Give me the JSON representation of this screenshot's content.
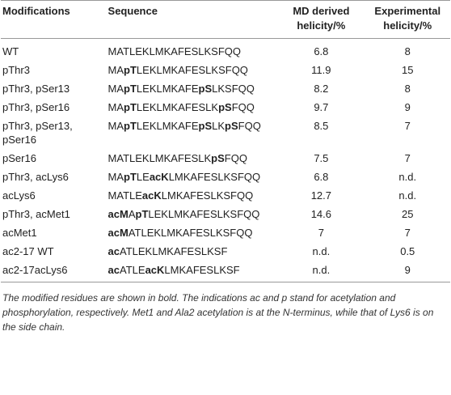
{
  "table": {
    "headers": [
      "Modifications",
      "Sequence",
      "MD derived helicity/%",
      "Experimental helicity/%"
    ],
    "rows": [
      {
        "modification": "WT",
        "sequence": [
          {
            "text": "MATLEKLMKAFESLKSFQQ"
          }
        ],
        "md": 6.8,
        "exp": 8
      },
      {
        "modification": "pThr3",
        "sequence": [
          {
            "text": "MA"
          },
          {
            "text": "pT",
            "bold": true
          },
          {
            "text": "LEKLMKAFESLKSFQQ"
          }
        ],
        "md": 11.9,
        "exp": 15
      },
      {
        "modification": "pThr3, pSer13",
        "sequence": [
          {
            "text": "MA"
          },
          {
            "text": "pT",
            "bold": true
          },
          {
            "text": "LEKLMKAFE"
          },
          {
            "text": "pS",
            "bold": true
          },
          {
            "text": "LKSFQQ"
          }
        ],
        "md": 8.2,
        "exp": 8
      },
      {
        "modification": "pThr3, pSer16",
        "sequence": [
          {
            "text": "MA"
          },
          {
            "text": "pT",
            "bold": true
          },
          {
            "text": "LEKLMKAFESLK"
          },
          {
            "text": "pS",
            "bold": true
          },
          {
            "text": "FQQ"
          }
        ],
        "md": 9.7,
        "exp": 9
      },
      {
        "modification": "pThr3, pSer13, pSer16",
        "sequence": [
          {
            "text": "MA"
          },
          {
            "text": "pT",
            "bold": true
          },
          {
            "text": "LEKLMKAFE"
          },
          {
            "text": "pS",
            "bold": true
          },
          {
            "text": "LK"
          },
          {
            "text": "pS",
            "bold": true
          },
          {
            "text": "FQQ"
          }
        ],
        "md": 8.5,
        "exp": 7
      },
      {
        "modification": "pSer16",
        "sequence": [
          {
            "text": "MATLEKLMKAFESLK"
          },
          {
            "text": "pS",
            "bold": true
          },
          {
            "text": "FQQ"
          }
        ],
        "md": 7.5,
        "exp": 7
      },
      {
        "modification": "pThr3, acLys6",
        "sequence": [
          {
            "text": "MA"
          },
          {
            "text": "pT",
            "bold": true
          },
          {
            "text": "LE"
          },
          {
            "text": "acK",
            "bold": true
          },
          {
            "text": "LMKAFESLKSFQQ"
          }
        ],
        "md": 6.8,
        "exp": "n.d."
      },
      {
        "modification": "acLys6",
        "sequence": [
          {
            "text": "MATLE"
          },
          {
            "text": "acK",
            "bold": true
          },
          {
            "text": "LMKAFESLKSFQQ"
          }
        ],
        "md": 12.7,
        "exp": "n.d."
      },
      {
        "modification": "pThr3, acMet1",
        "sequence": [
          {
            "text": "acM",
            "bold": true
          },
          {
            "text": "A"
          },
          {
            "text": "pT",
            "bold": true
          },
          {
            "text": "LEKLMKAFESLKSFQQ"
          }
        ],
        "md": 14.6,
        "exp": 25
      },
      {
        "modification": "acMet1",
        "sequence": [
          {
            "text": "acM",
            "bold": true
          },
          {
            "text": "ATLEKLMKAFESLKSFQQ"
          }
        ],
        "md": 7.0,
        "exp": 7
      },
      {
        "modification": "ac2-17 WT",
        "sequence": [
          {
            "text": "ac",
            "bold": true
          },
          {
            "text": "ATLEKLMKAFESLKSF"
          }
        ],
        "md": "n.d.",
        "exp": 0.5
      },
      {
        "modification": "ac2-17acLys6",
        "sequence": [
          {
            "text": "ac",
            "bold": true
          },
          {
            "text": "ATLE"
          },
          {
            "text": "acK",
            "bold": true
          },
          {
            "text": "LMKAFESLKSF"
          }
        ],
        "md": "n.d.",
        "exp": 9
      }
    ],
    "note": "The modified residues are shown in bold. The indications ac and p stand for acetylation and phosphorylation, respectively. Met1 and Ala2 acetylation is at the N-terminus, while that of Lys6 is on the side chain."
  }
}
